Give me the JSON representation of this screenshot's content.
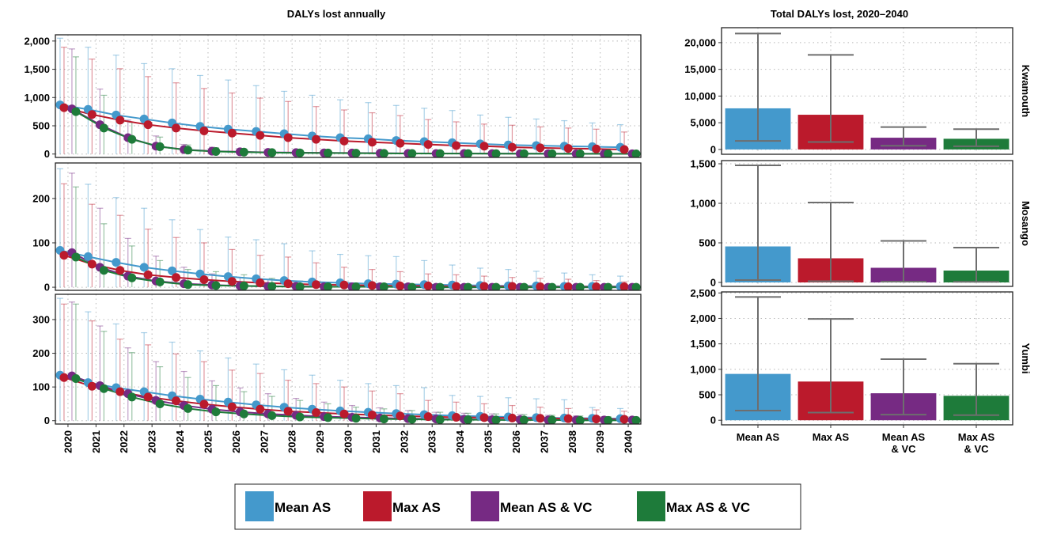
{
  "colors": {
    "mean_as": "#4499CC",
    "max_as": "#BB1A2C",
    "mean_as_vc": "#762A83",
    "max_as_vc": "#1E7B3A",
    "error_bar": "#6E6E6E",
    "grid": "#B8B8B8"
  },
  "chart_data": [
    {
      "type": "line",
      "title": "DALYs lost annually",
      "x": [
        2020,
        2021,
        2022,
        2023,
        2024,
        2025,
        2026,
        2027,
        2028,
        2029,
        2030,
        2031,
        2032,
        2033,
        2034,
        2035,
        2036,
        2037,
        2038,
        2039,
        2040
      ],
      "x_ticks": [
        "2020",
        "2021",
        "2022",
        "2023",
        "2024",
        "2025",
        "2026",
        "2027",
        "2028",
        "2029",
        "2030",
        "2031",
        "2032",
        "2033",
        "2034",
        "2035",
        "2036",
        "2037",
        "2038",
        "2039",
        "2040"
      ],
      "series_names": [
        "Mean AS",
        "Max AS",
        "Mean AS & VC",
        "Max AS & VC"
      ],
      "grid": true,
      "panels": [
        {
          "strip": "Kwamouth",
          "ylim": [
            -60,
            2110
          ],
          "y_ticks": [
            0,
            500,
            1000,
            1500,
            2000
          ],
          "y_tick_labels": [
            "0",
            "500",
            "1,000",
            "1,500",
            "2,000"
          ],
          "series": [
            {
              "name": "Mean AS",
              "values": [
                870,
                790,
                690,
                620,
                550,
                490,
                440,
                400,
                360,
                320,
                290,
                270,
                240,
                220,
                200,
                180,
                160,
                150,
                140,
                130,
                120
              ],
              "upper": [
                2050,
                1890,
                1750,
                1600,
                1510,
                1390,
                1310,
                1210,
                1110,
                1040,
                960,
                910,
                860,
                810,
                770,
                690,
                650,
                620,
                590,
                550,
                520
              ]
            },
            {
              "name": "Max AS",
              "values": [
                820,
                700,
                600,
                520,
                460,
                410,
                370,
                330,
                290,
                260,
                230,
                210,
                190,
                170,
                150,
                140,
                120,
                110,
                100,
                90,
                80
              ],
              "upper": [
                1890,
                1680,
                1510,
                1370,
                1260,
                1160,
                1080,
                990,
                930,
                840,
                780,
                730,
                680,
                610,
                570,
                530,
                510,
                480,
                460,
                440,
                390
              ]
            },
            {
              "name": "Mean AS & VC",
              "values": [
                800,
                520,
                290,
                140,
                80,
                50,
                40,
                30,
                25,
                20,
                18,
                15,
                12,
                10,
                10,
                8,
                7,
                6,
                5,
                5,
                4
              ],
              "upper": [
                1860,
                1150,
                600,
                320,
                170,
                120,
                90,
                70,
                60,
                50,
                40,
                35,
                30,
                28,
                25,
                22,
                20,
                18,
                16,
                15,
                14
              ]
            },
            {
              "name": "Max AS & VC",
              "values": [
                750,
                460,
                260,
                130,
                70,
                45,
                35,
                25,
                20,
                18,
                15,
                12,
                10,
                8,
                8,
                7,
                6,
                5,
                4,
                4,
                3
              ],
              "upper": [
                1720,
                1040,
                560,
                300,
                160,
                110,
                80,
                60,
                50,
                45,
                38,
                32,
                28,
                25,
                22,
                20,
                18,
                16,
                14,
                13,
                12
              ]
            }
          ]
        },
        {
          "strip": "Mosango",
          "ylim": [
            -7,
            280
          ],
          "y_ticks": [
            0,
            100,
            200
          ],
          "y_tick_labels": [
            "0",
            "100",
            "200"
          ],
          "series": [
            {
              "name": "Mean AS",
              "values": [
                83,
                69,
                56,
                45,
                37,
                30,
                24,
                19,
                15,
                12,
                10,
                8,
                7,
                6,
                5,
                4,
                3,
                3,
                2,
                2,
                2
              ],
              "upper": [
                267,
                232,
                202,
                178,
                152,
                130,
                113,
                107,
                98,
                82,
                74,
                71,
                69,
                60,
                50,
                43,
                40,
                36,
                32,
                28,
                25
              ]
            },
            {
              "name": "Max AS",
              "values": [
                72,
                52,
                38,
                28,
                22,
                17,
                13,
                10,
                8,
                6,
                5,
                4,
                3,
                3,
                2,
                2,
                2,
                1,
                1,
                1,
                1
              ],
              "upper": [
                233,
                187,
                162,
                131,
                112,
                100,
                85,
                72,
                68,
                55,
                45,
                40,
                35,
                30,
                28,
                25,
                22,
                20,
                18,
                15,
                12
              ]
            },
            {
              "name": "Mean AS & VC",
              "values": [
                78,
                45,
                25,
                14,
                8,
                5,
                3,
                2,
                2,
                1,
                1,
                1,
                1,
                0,
                0,
                0,
                0,
                0,
                0,
                0,
                0
              ],
              "upper": [
                257,
                178,
                110,
                70,
                45,
                30,
                22,
                18,
                12,
                10,
                8,
                7,
                6,
                5,
                5,
                4,
                4,
                3,
                3,
                3,
                3
              ]
            },
            {
              "name": "Max AS & VC",
              "values": [
                68,
                38,
                21,
                12,
                6,
                4,
                3,
                2,
                1,
                1,
                1,
                1,
                0,
                0,
                0,
                0,
                0,
                0,
                0,
                0,
                0
              ],
              "upper": [
                226,
                143,
                93,
                60,
                40,
                35,
                28,
                20,
                14,
                11,
                9,
                8,
                7,
                6,
                5,
                5,
                4,
                4,
                3,
                3,
                3
              ]
            }
          ]
        },
        {
          "strip": "Yumbi",
          "ylim": [
            -10,
            375
          ],
          "y_ticks": [
            0,
            100,
            200,
            300
          ],
          "y_tick_labels": [
            "0",
            "100",
            "200",
            "300"
          ],
          "series": [
            {
              "name": "Mean AS",
              "values": [
                135,
                113,
                98,
                86,
                74,
                64,
                55,
                47,
                40,
                34,
                29,
                25,
                21,
                18,
                15,
                13,
                11,
                9,
                8,
                7,
                6
              ],
              "upper": [
                363,
                323,
                287,
                261,
                233,
                207,
                186,
                168,
                151,
                135,
                120,
                110,
                104,
                98,
                75,
                72,
                68,
                65,
                62,
                39,
                36
              ]
            },
            {
              "name": "Max AS",
              "values": [
                128,
                102,
                86,
                70,
                59,
                49,
                41,
                34,
                28,
                24,
                20,
                17,
                14,
                12,
                10,
                9,
                8,
                7,
                6,
                5,
                4
              ],
              "upper": [
                346,
                296,
                242,
                225,
                198,
                175,
                150,
                140,
                120,
                110,
                100,
                88,
                80,
                60,
                55,
                50,
                45,
                40,
                36,
                32,
                28
              ]
            },
            {
              "name": "Mean AS & VC",
              "values": [
                133,
                104,
                80,
                60,
                45,
                34,
                26,
                20,
                16,
                12,
                10,
                8,
                6,
                5,
                4,
                3,
                3,
                2,
                2,
                2,
                2
              ],
              "upper": [
                352,
                281,
                216,
                175,
                146,
                118,
                97,
                80,
                66,
                55,
                45,
                38,
                30,
                25,
                22,
                20,
                18,
                16,
                14,
                12,
                10
              ]
            },
            {
              "name": "Max AS & VC",
              "values": [
                125,
                95,
                70,
                50,
                36,
                26,
                20,
                15,
                11,
                9,
                7,
                5,
                4,
                3,
                3,
                2,
                2,
                2,
                1,
                1,
                1
              ],
              "upper": [
                346,
                265,
                202,
                160,
                128,
                104,
                86,
                72,
                60,
                50,
                40,
                35,
                30,
                25,
                22,
                20,
                18,
                16,
                14,
                12,
                10
              ]
            }
          ]
        }
      ]
    },
    {
      "type": "bar",
      "title": "Total DALYs lost, 2020–2040",
      "categories": [
        [
          "Mean AS"
        ],
        [
          "Max AS"
        ],
        [
          "Mean AS",
          "& VC"
        ],
        [
          "Max AS",
          "& VC"
        ]
      ],
      "grid": true,
      "panels": [
        {
          "strip": "Kwamouth",
          "ylim": [
            -900,
            22800
          ],
          "y_ticks": [
            0,
            5000,
            10000,
            15000,
            20000
          ],
          "y_tick_labels": [
            "0",
            "5,000",
            "10,000",
            "15,000",
            "20,000"
          ],
          "values": [
            7700,
            6500,
            2200,
            2000
          ],
          "lower": [
            1600,
            1400,
            700,
            600
          ],
          "upper": [
            21700,
            17700,
            4200,
            3800
          ]
        },
        {
          "strip": "Mosango",
          "ylim": [
            -50,
            1540
          ],
          "y_ticks": [
            0,
            500,
            1000,
            1500
          ],
          "y_tick_labels": [
            "0",
            "500",
            "1,000",
            "1,500"
          ],
          "values": [
            455,
            305,
            185,
            150
          ],
          "lower": [
            30,
            15,
            10,
            8
          ],
          "upper": [
            1480,
            1010,
            525,
            440
          ]
        },
        {
          "strip": "Yumbi",
          "ylim": [
            -90,
            2520
          ],
          "y_ticks": [
            0,
            500,
            1000,
            1500,
            2000,
            2500
          ],
          "y_tick_labels": [
            "0",
            "500",
            "1,000",
            "1,500",
            "2,000",
            "2,500"
          ],
          "values": [
            910,
            760,
            530,
            480
          ],
          "lower": [
            190,
            150,
            110,
            100
          ],
          "upper": [
            2420,
            1990,
            1200,
            1110
          ]
        }
      ]
    }
  ],
  "legend": {
    "position": "bottom",
    "items": [
      {
        "label": "Mean AS",
        "color": "#4499CC"
      },
      {
        "label": "Max AS",
        "color": "#BB1A2C"
      },
      {
        "label": "Mean AS & VC",
        "color": "#762A83"
      },
      {
        "label": "Max AS & VC",
        "color": "#1E7B3A"
      }
    ]
  }
}
